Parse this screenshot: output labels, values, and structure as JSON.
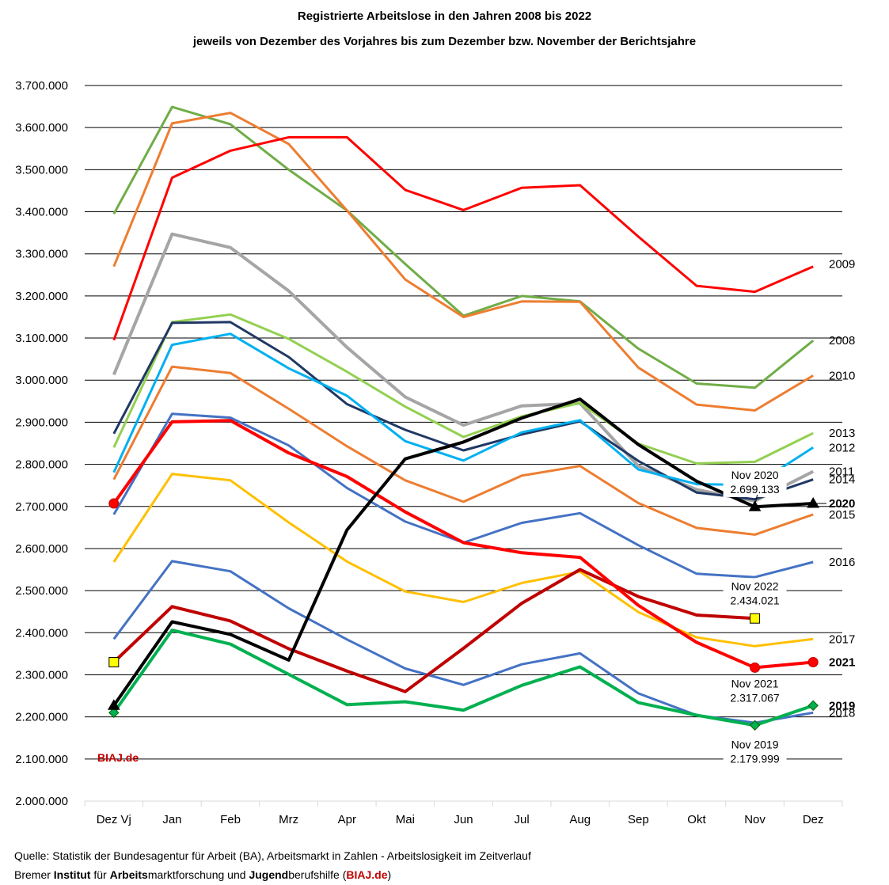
{
  "title": "Registrierte Arbeitslose in den Jahren 2008 bis 2022",
  "subtitle": "jeweils von Dezember des Vorjahres bis zum Dezember bzw. November der Berichtsjahre",
  "watermark": "BIAJ.de",
  "footer": {
    "source": "Quelle: Statistik der Bundesagentur für Arbeit (BA), Arbeitsmarkt in Zahlen - Arbeitslosigkeit im Zeitverlauf",
    "inst": [
      "Bremer ",
      "Institut",
      " für ",
      "Arbeits",
      "marktforschung und ",
      "Jugend",
      "berufshilfe (",
      "BIAJ.de",
      ")"
    ]
  },
  "chart_data": {
    "type": "line",
    "title": "Registrierte Arbeitslose in den Jahren 2008 bis 2022",
    "categories": [
      "Dez Vj",
      "Jan",
      "Feb",
      "Mrz",
      "Apr",
      "Mai",
      "Jun",
      "Jul",
      "Aug",
      "Sep",
      "Okt",
      "Nov",
      "Dez"
    ],
    "ylim": [
      2000000,
      3700000
    ],
    "y_ticks": [
      {
        "v": 2000000,
        "label": "2.000.000"
      },
      {
        "v": 2100000,
        "label": "2.100.000"
      },
      {
        "v": 2200000,
        "label": "2.200.000"
      },
      {
        "v": 2300000,
        "label": "2.300.000"
      },
      {
        "v": 2400000,
        "label": "2.400.000"
      },
      {
        "v": 2500000,
        "label": "2.500.000"
      },
      {
        "v": 2600000,
        "label": "2.600.000"
      },
      {
        "v": 2700000,
        "label": "2.700.000"
      },
      {
        "v": 2800000,
        "label": "2.800.000"
      },
      {
        "v": 2900000,
        "label": "2.900.000"
      },
      {
        "v": 3000000,
        "label": "3.000.000"
      },
      {
        "v": 3100000,
        "label": "3.100.000"
      },
      {
        "v": 3200000,
        "label": "3.200.000"
      },
      {
        "v": 3300000,
        "label": "3.300.000"
      },
      {
        "v": 3400000,
        "label": "3.400.000"
      },
      {
        "v": 3500000,
        "label": "3.500.000"
      },
      {
        "v": 3600000,
        "label": "3.600.000"
      },
      {
        "v": 3700000,
        "label": "3.700.000"
      }
    ],
    "series": [
      {
        "name": "2008",
        "color": "#70ad47",
        "width": 3,
        "label": "2008",
        "label_y": 3094000,
        "bold": false,
        "values": [
          3395000,
          3649000,
          3608000,
          3500000,
          3403000,
          3276000,
          3153000,
          3200000,
          3187000,
          3075000,
          2992000,
          2982000,
          3094000
        ]
      },
      {
        "name": "2010",
        "color": "#ed7d31",
        "width": 3,
        "label": "2010",
        "label_y": 3011000,
        "bold": false,
        "values": [
          3270000,
          3610000,
          3635000,
          3561000,
          3403000,
          3239000,
          3150000,
          3187000,
          3186000,
          3030000,
          2942000,
          2928000,
          3011000
        ]
      },
      {
        "name": "2009",
        "color": "#ff0000",
        "width": 3,
        "label": "2009",
        "label_y": 3276000,
        "bold": false,
        "values": [
          3095000,
          3481000,
          3545000,
          3577000,
          3577000,
          3452000,
          3404000,
          3457000,
          3463000,
          3341000,
          3224000,
          3210000,
          3270000
        ]
      },
      {
        "name": "2011",
        "color": "#a5a5a5",
        "width": 4,
        "label": "2011",
        "label_y": 2783000,
        "bold": false,
        "values": [
          3013000,
          3347000,
          3315000,
          3212000,
          3078000,
          2960000,
          2893000,
          2939000,
          2945000,
          2796000,
          2740000,
          2713000,
          2783000
        ]
      },
      {
        "name": "2013",
        "color": "#92d050",
        "width": 3,
        "label": "2013",
        "label_y": 2874000,
        "bold": false,
        "values": [
          2840000,
          3138000,
          3156000,
          3098000,
          3020000,
          2937000,
          2865000,
          2914000,
          2946000,
          2849000,
          2802000,
          2806000,
          2874000
        ]
      },
      {
        "name": "2014",
        "color": "#203864",
        "width": 3,
        "label": "2014",
        "label_y": 2764000,
        "bold": false,
        "values": [
          2873000,
          3136000,
          3138000,
          3055000,
          2943000,
          2882000,
          2833000,
          2871000,
          2902000,
          2808000,
          2733000,
          2717000,
          2764000
        ]
      },
      {
        "name": "2012",
        "color": "#00b0f0",
        "width": 3,
        "label": "2012",
        "label_y": 2840000,
        "bold": false,
        "values": [
          2781000,
          3084000,
          3110000,
          3028000,
          2963000,
          2855000,
          2809000,
          2876000,
          2905000,
          2788000,
          2753000,
          2751000,
          2840000
        ]
      },
      {
        "name": "2015",
        "color": "#ed7d31",
        "width": 3,
        "label": "2015",
        "label_y": 2681000,
        "bold": false,
        "values": [
          2764000,
          3032000,
          3017000,
          2932000,
          2843000,
          2762000,
          2711000,
          2773000,
          2796000,
          2708000,
          2649000,
          2633000,
          2681000
        ]
      },
      {
        "name": "2016",
        "color": "#4472c4",
        "width": 3,
        "label": "2016",
        "label_y": 2568000,
        "bold": false,
        "values": [
          2681000,
          2920000,
          2911000,
          2845000,
          2744000,
          2664000,
          2614000,
          2661000,
          2684000,
          2608000,
          2540000,
          2532000,
          2568000
        ]
      },
      {
        "name": "2017",
        "color": "#ffc000",
        "width": 3,
        "label": "2017",
        "label_y": 2385000,
        "bold": false,
        "values": [
          2568000,
          2777000,
          2762000,
          2662000,
          2569000,
          2498000,
          2473000,
          2518000,
          2545000,
          2449000,
          2389000,
          2368000,
          2385000
        ]
      },
      {
        "name": "2018",
        "color": "#4472c4",
        "width": 3,
        "label": "2018",
        "label_y": 2210000,
        "bold": false,
        "values": [
          2385000,
          2570000,
          2546000,
          2458000,
          2384000,
          2315000,
          2276000,
          2325000,
          2351000,
          2256000,
          2204000,
          2186000,
          2210000
        ]
      },
      {
        "name": "2019",
        "color": "#00b050",
        "width": 4,
        "label": "2019",
        "label_y": 2227000,
        "bold": true,
        "marker": "diamond",
        "marker_fill": "#00b050",
        "marker_points": [
          0,
          11,
          12
        ],
        "values": [
          2210000,
          2406000,
          2373000,
          2301000,
          2229000,
          2236000,
          2216000,
          2275000,
          2319000,
          2234000,
          2204000,
          2180000,
          2227000
        ]
      },
      {
        "name": "2022",
        "color": "#c00000",
        "width": 4,
        "label": "",
        "label_y": null,
        "bold": false,
        "marker": "square",
        "marker_fill": "#ffff00",
        "marker_points": [
          0,
          11
        ],
        "values": [
          2330000,
          2462000,
          2428000,
          2362000,
          2309000,
          2260000,
          2363000,
          2470000,
          2550000,
          2486000,
          2442000,
          2434000,
          null
        ]
      },
      {
        "name": "2021",
        "color": "#ff0000",
        "width": 4,
        "label": "2021",
        "label_y": 2330000,
        "bold": true,
        "marker": "circle",
        "marker_fill": "#ff0000",
        "marker_points": [
          0,
          11,
          12
        ],
        "values": [
          2707000,
          2901000,
          2904000,
          2827000,
          2771000,
          2687000,
          2614000,
          2590000,
          2579000,
          2465000,
          2377000,
          2317000,
          2330000
        ]
      },
      {
        "name": "2020",
        "color": "#000000",
        "width": 4,
        "label": "2020",
        "label_y": 2707000,
        "bold": true,
        "marker": "triangle",
        "marker_fill": "#000000",
        "marker_points": [
          0,
          11,
          12
        ],
        "values": [
          2227000,
          2426000,
          2396000,
          2335000,
          2644000,
          2813000,
          2853000,
          2910000,
          2955000,
          2847000,
          2760000,
          2699000,
          2707000
        ]
      }
    ],
    "annotations": [
      {
        "lines": [
          "Nov 2020",
          "2.699.133"
        ],
        "anchor_y": 2758000
      },
      {
        "lines": [
          "Nov 2022",
          "2.434.021"
        ],
        "anchor_y": 2494000
      },
      {
        "lines": [
          "Nov 2021",
          "2.317.067"
        ],
        "anchor_y": 2262000
      },
      {
        "lines": [
          "Nov 2019",
          "2.179.999"
        ],
        "anchor_y": 2118000
      }
    ]
  }
}
